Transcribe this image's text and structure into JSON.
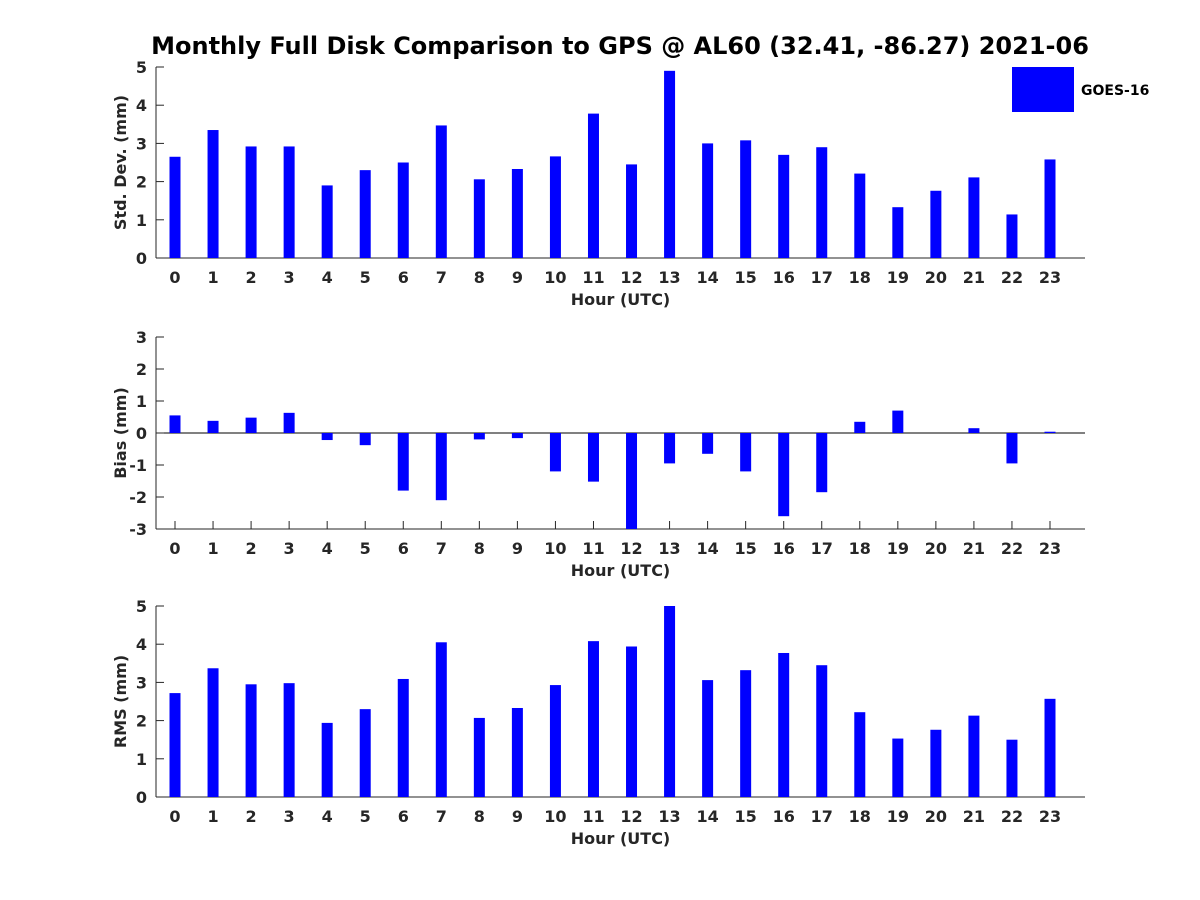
{
  "title": "Monthly Full Disk Comparison to GPS @ AL60 (32.41, -86.27) 2021-06",
  "legend": {
    "label": "GOES-16",
    "color": "#0000ff"
  },
  "chart_data": [
    {
      "type": "bar",
      "xlabel": "Hour (UTC)",
      "ylabel": "Std. Dev. (mm)",
      "ylim": [
        0,
        5
      ],
      "yticks": [
        "0",
        "1",
        "2",
        "3",
        "4",
        "5"
      ],
      "categories": [
        "0",
        "1",
        "2",
        "3",
        "4",
        "5",
        "6",
        "7",
        "8",
        "9",
        "10",
        "11",
        "12",
        "13",
        "14",
        "15",
        "16",
        "17",
        "18",
        "19",
        "20",
        "21",
        "22",
        "23"
      ],
      "series": [
        {
          "name": "GOES-16",
          "color": "#0000ff",
          "values": [
            2.65,
            3.35,
            2.92,
            2.92,
            1.9,
            2.3,
            2.5,
            3.47,
            2.06,
            2.33,
            2.66,
            3.78,
            2.45,
            4.9,
            3.0,
            3.08,
            2.7,
            2.9,
            2.21,
            1.33,
            1.76,
            2.11,
            1.14,
            2.58
          ]
        }
      ],
      "grid": false
    },
    {
      "type": "bar",
      "xlabel": "Hour (UTC)",
      "ylabel": "Bias (mm)",
      "ylim": [
        -3,
        3
      ],
      "yticks": [
        "-3",
        "-2",
        "-1",
        "0",
        "1",
        "2",
        "3"
      ],
      "categories": [
        "0",
        "1",
        "2",
        "3",
        "4",
        "5",
        "6",
        "7",
        "8",
        "9",
        "10",
        "11",
        "12",
        "13",
        "14",
        "15",
        "16",
        "17",
        "18",
        "19",
        "20",
        "21",
        "22",
        "23"
      ],
      "series": [
        {
          "name": "GOES-16",
          "color": "#0000ff",
          "values": [
            0.55,
            0.38,
            0.48,
            0.63,
            -0.22,
            -0.38,
            -1.8,
            -2.1,
            -0.2,
            -0.16,
            -1.2,
            -1.52,
            -3.0,
            -0.95,
            -0.65,
            -1.2,
            -2.6,
            -1.85,
            0.35,
            0.7,
            0.0,
            0.15,
            -0.95,
            0.04
          ]
        }
      ],
      "grid": false
    },
    {
      "type": "bar",
      "xlabel": "Hour (UTC)",
      "ylabel": "RMS (mm)",
      "ylim": [
        0,
        5
      ],
      "yticks": [
        "0",
        "1",
        "2",
        "3",
        "4",
        "5"
      ],
      "categories": [
        "0",
        "1",
        "2",
        "3",
        "4",
        "5",
        "6",
        "7",
        "8",
        "9",
        "10",
        "11",
        "12",
        "13",
        "14",
        "15",
        "16",
        "17",
        "18",
        "19",
        "20",
        "21",
        "22",
        "23"
      ],
      "series": [
        {
          "name": "GOES-16",
          "color": "#0000ff",
          "values": [
            2.72,
            3.37,
            2.95,
            2.98,
            1.94,
            2.3,
            3.09,
            4.05,
            2.07,
            2.33,
            2.93,
            4.08,
            3.94,
            5.0,
            3.06,
            3.32,
            3.77,
            3.45,
            2.22,
            1.53,
            1.76,
            2.13,
            1.5,
            2.57
          ]
        }
      ],
      "grid": false
    }
  ]
}
